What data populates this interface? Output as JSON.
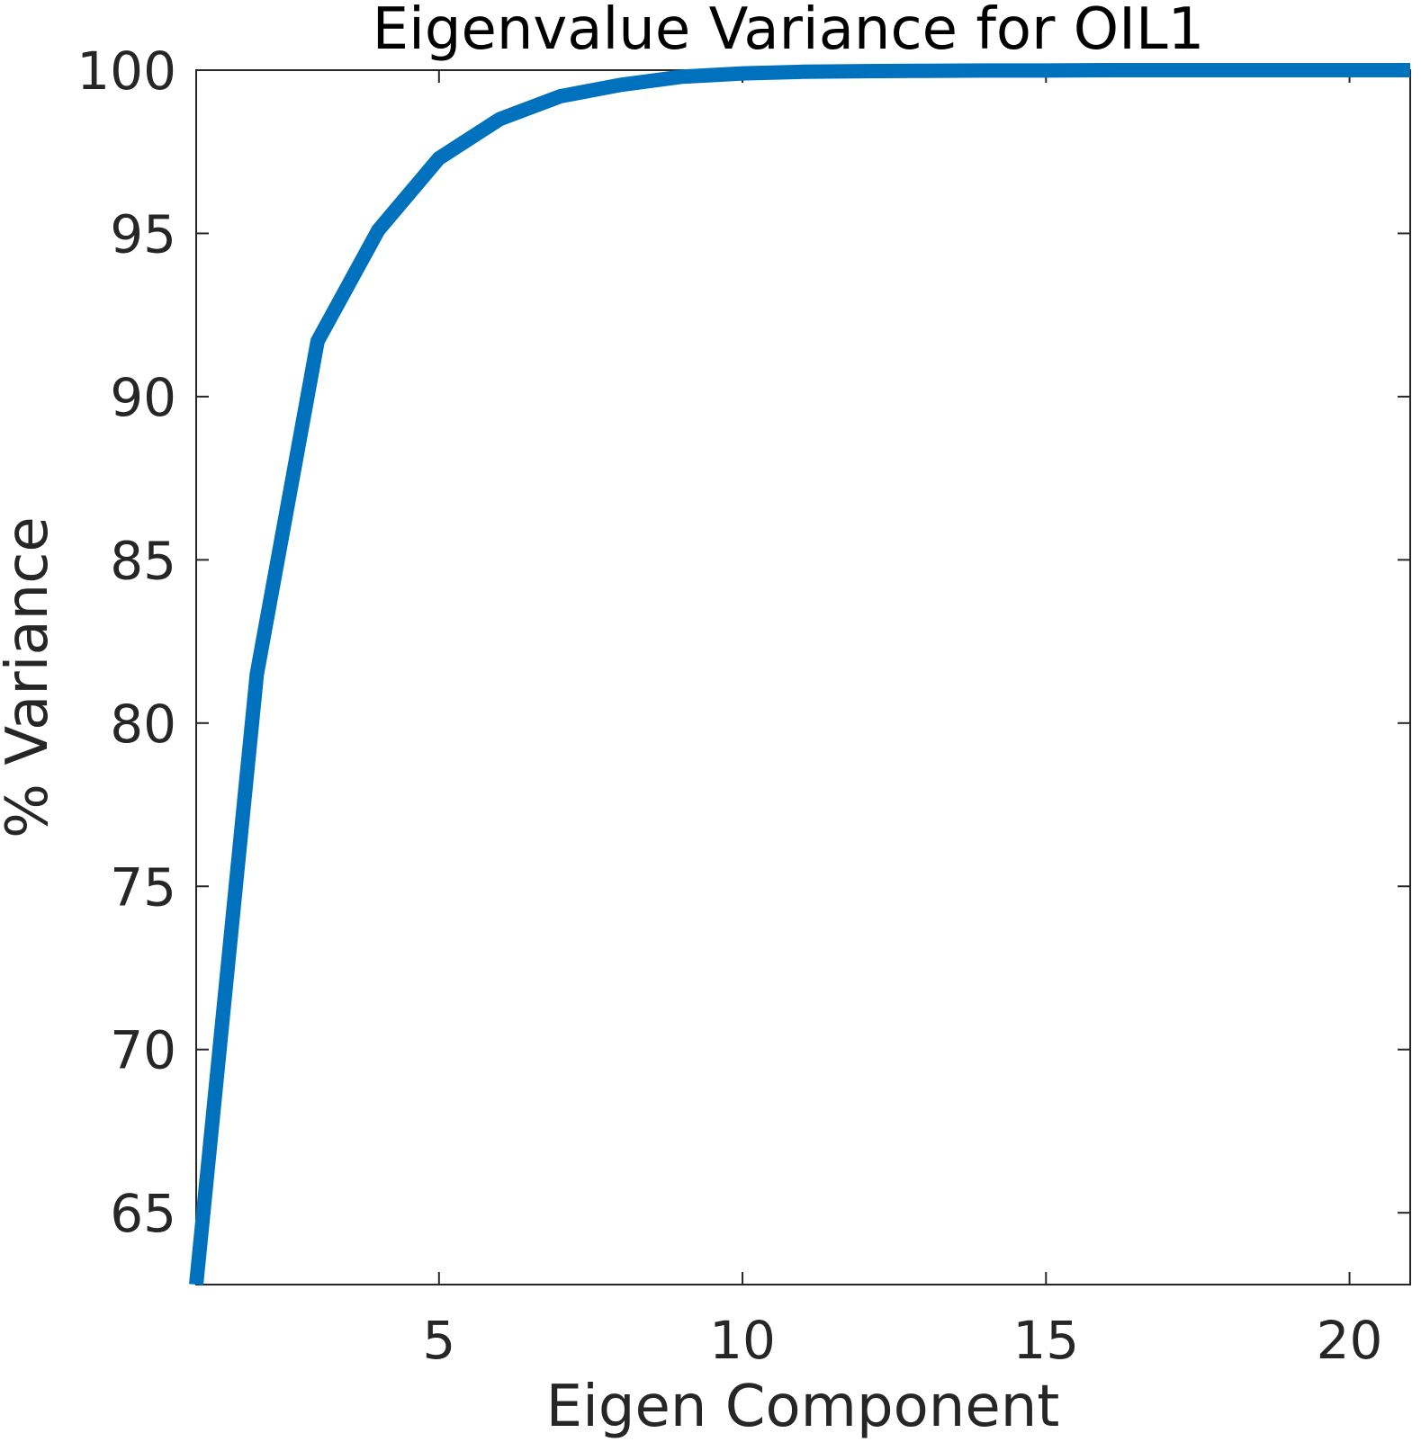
{
  "chart_data": {
    "type": "line",
    "title": "Eigenvalue Variance for OIL1",
    "xlabel": "Eigen Component",
    "ylabel": "% Variance",
    "xlim": [
      1,
      21
    ],
    "ylim": [
      62.8,
      100
    ],
    "xticks": [
      5,
      10,
      15,
      20
    ],
    "yticks": [
      65,
      70,
      75,
      80,
      85,
      90,
      95,
      100
    ],
    "grid": false,
    "legend": "none",
    "line_color": "#0072BD",
    "axis_color": "#262626",
    "series": [
      {
        "x": [
          1,
          2,
          3,
          4,
          5,
          6,
          7,
          8,
          9,
          10,
          11,
          12,
          13,
          14,
          15,
          16,
          17,
          18,
          19,
          20,
          21
        ],
        "values": [
          62.8,
          81.5,
          91.7,
          95.1,
          97.3,
          98.5,
          99.2,
          99.55,
          99.8,
          99.9,
          99.95,
          99.97,
          99.98,
          99.99,
          99.99,
          100,
          100,
          100,
          100,
          100,
          100
        ]
      }
    ]
  }
}
